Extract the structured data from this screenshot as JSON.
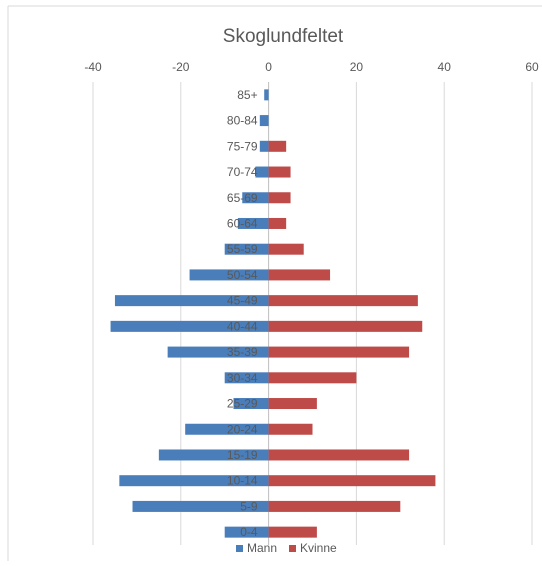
{
  "chart_data": {
    "type": "bar",
    "orientation": "horizontal",
    "title": "Skoglundfeltet",
    "xlabel": "",
    "ylabel": "",
    "xlim": [
      -40,
      60
    ],
    "x_ticks": [
      "-40",
      "-20",
      "0",
      "20",
      "40",
      "60"
    ],
    "x_axis_position": "top",
    "grid": true,
    "legend_position": "bottom",
    "categories": [
      "85+",
      "80-84",
      "75-79",
      "70-74",
      "65-69",
      "60-64",
      "55-59",
      "50-54",
      "45-49",
      "40-44",
      "35-39",
      "30-34",
      "25-29",
      "20-24",
      "15-19",
      "10-14",
      "5-9",
      "0-4"
    ],
    "series": [
      {
        "name": "Mann",
        "color": "#4a7ebb",
        "values": [
          -1,
          -2,
          -2,
          -3,
          -6,
          -7,
          -10,
          -18,
          -35,
          -36,
          -23,
          -10,
          -8,
          -19,
          -25,
          -34,
          -31,
          -10
        ]
      },
      {
        "name": "Kvinne",
        "color": "#be4b48",
        "values": [
          0,
          0,
          4,
          5,
          5,
          4,
          8,
          14,
          34,
          35,
          32,
          20,
          11,
          10,
          32,
          38,
          30,
          11
        ]
      }
    ]
  }
}
